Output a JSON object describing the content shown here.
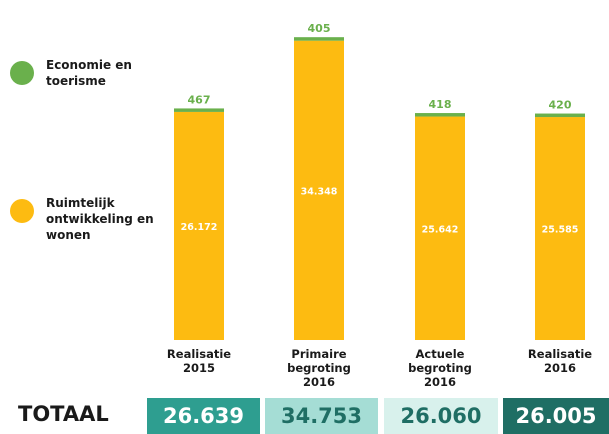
{
  "chart_data": {
    "type": "bar",
    "stacked": true,
    "categories": [
      [
        "Realisatie",
        "2015"
      ],
      [
        "Primaire",
        "begroting",
        "2016"
      ],
      [
        "Actuele",
        "begroting",
        "2016"
      ],
      [
        "Realisatie",
        "2016"
      ]
    ],
    "series": [
      {
        "name": [
          "Ruimtelijk",
          "ontwikkeling en",
          "wonen"
        ],
        "color": "#FDBB11",
        "values": [
          26172,
          34348,
          25642,
          25585
        ],
        "labels": [
          "26.172",
          "34.348",
          "25.642",
          "25.585"
        ]
      },
      {
        "name": [
          "Economie en",
          "toerisme"
        ],
        "color": "#6AB04C",
        "values": [
          467,
          405,
          418,
          420
        ],
        "labels": [
          "467",
          "405",
          "418",
          "420"
        ]
      }
    ],
    "totals": {
      "label": "TOTAAL",
      "values": [
        "26.639",
        "34.753",
        "26.060",
        "26.005"
      ],
      "box_colors": [
        "#2E9E90",
        "#A5DDD5",
        "#D8F1EC",
        "#1F6E64"
      ],
      "text_colors": [
        "#ffffff",
        "#1F6E64",
        "#1F6E64",
        "#ffffff"
      ]
    },
    "legend_position": "left",
    "grid": false,
    "ylim": [
      0,
      35000
    ]
  }
}
